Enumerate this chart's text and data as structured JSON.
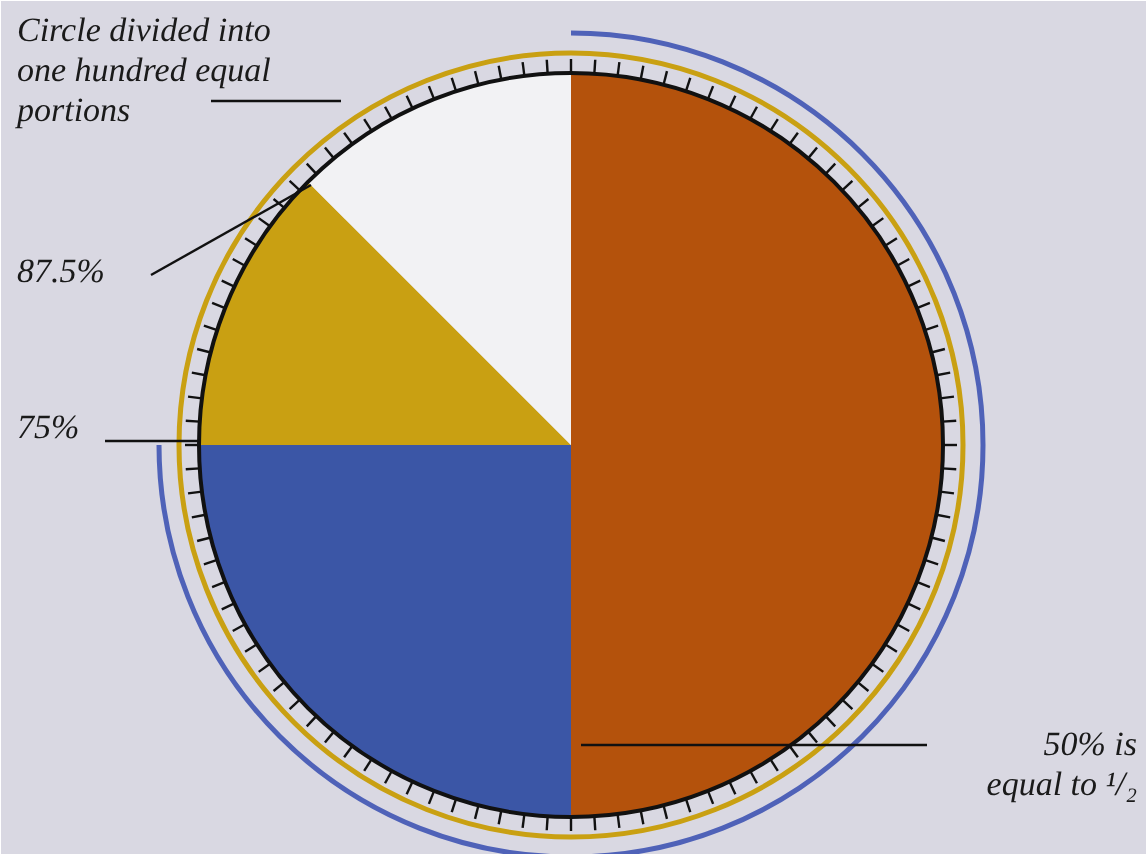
{
  "chart_data": {
    "type": "pie",
    "categories": [
      null,
      null,
      null,
      null
    ],
    "values": [
      50,
      25,
      12.5,
      12.5
    ],
    "colors": [
      "#b4520c",
      "#3b56a6",
      "#c9a012",
      "#f2f2f4"
    ],
    "annotations": [
      "Circle divided into\none hundred equal\nportions",
      "87.5%",
      "75%",
      "50% is\nequal to ¹/₂"
    ]
  }
}
